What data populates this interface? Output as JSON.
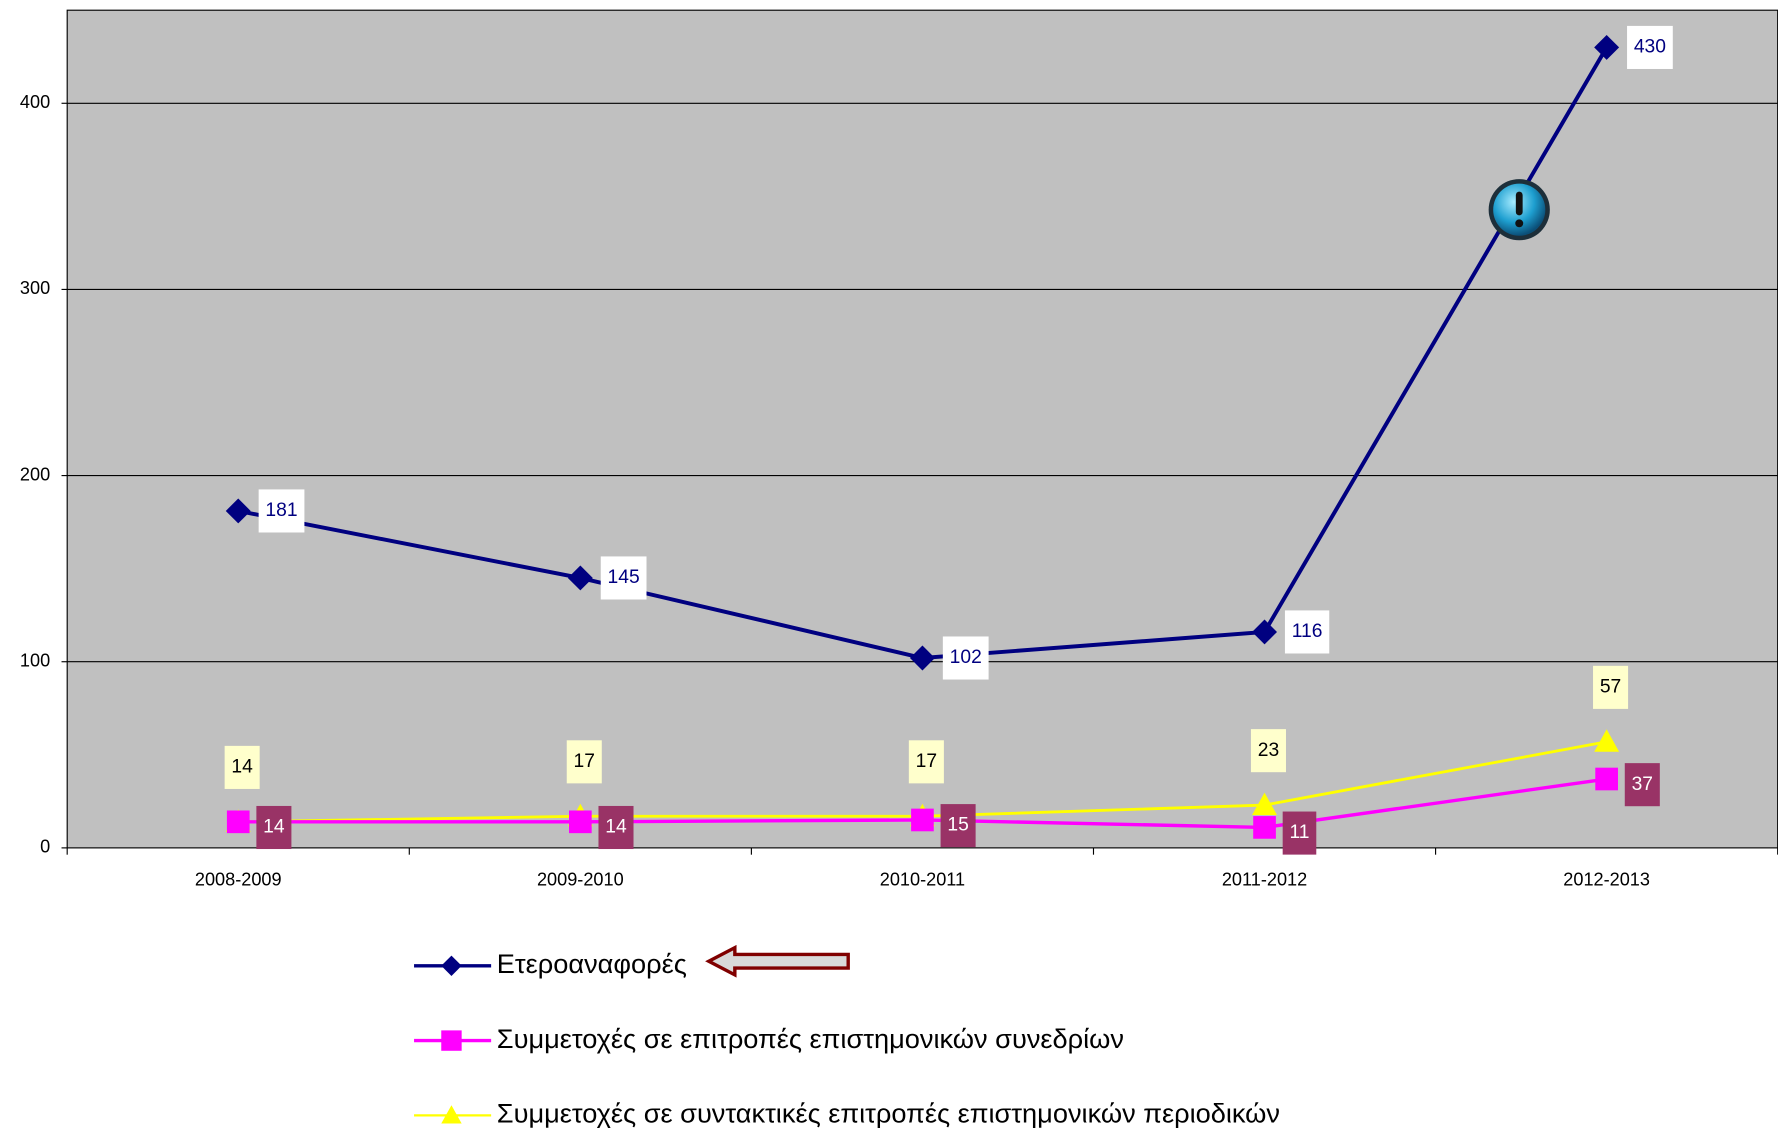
{
  "chart_data": {
    "type": "line",
    "categories": [
      "2008-2009",
      "2009-2010",
      "2010-2011",
      "2011-2012",
      "2012-2013"
    ],
    "series": [
      {
        "name": "Ετεροαναφορές",
        "color": "#000080",
        "marker": "diamond",
        "values": [
          181,
          145,
          102,
          116,
          430
        ]
      },
      {
        "name": "Συμμετοχές σε επιτροπές επιστημονικών συνεδρίων",
        "color": "#ff00ff",
        "marker": "square",
        "values": [
          14,
          14,
          15,
          11,
          37
        ]
      },
      {
        "name": "Συμμετοχές σε συντακτικές επιτροπές επιστημονικών περιοδικών",
        "color": "#ffff00",
        "marker": "triangle",
        "values": [
          14,
          17,
          17,
          23,
          57
        ]
      }
    ],
    "ylim": [
      0,
      450
    ],
    "yticks": [
      0,
      100,
      200,
      300,
      400
    ],
    "grid": true,
    "legend": "bottom"
  }
}
